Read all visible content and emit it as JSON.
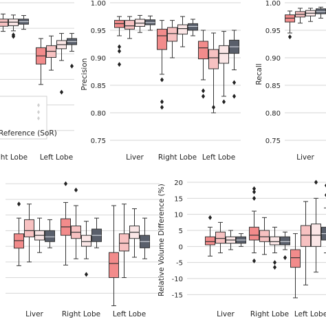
{
  "palette": {
    "series": [
      "#f28b8b",
      "#f7c1c1",
      "#fae6e6",
      "#595f6b"
    ],
    "grid": "#d6d6d6",
    "outlier": "#222222"
  },
  "legend": {
    "label": "Reference (SoR)"
  },
  "chart_data": [
    {
      "type": "box",
      "panel": "top-left (cropped)",
      "title": "",
      "ylabel": "",
      "categories": [
        "Right Lobe",
        "Left Lobe"
      ],
      "ylim": [
        0.72,
        1.0
      ],
      "yticks": [],
      "series": [
        {
          "values": [
            {
              "q1": 0.954,
              "med": 0.96,
              "q3": 0.967,
              "wlo": 0.94,
              "whi": 0.976,
              "out": [
                0.93
              ]
            },
            {
              "q1": 0.88,
              "med": 0.896,
              "q3": 0.912,
              "wlo": 0.84,
              "whi": 0.93,
              "out": []
            }
          ]
        },
        {
          "values": [
            {
              "q1": 0.954,
              "med": 0.962,
              "q3": 0.968,
              "wlo": 0.944,
              "whi": 0.978,
              "out": []
            },
            {
              "q1": 0.893,
              "med": 0.905,
              "q3": 0.916,
              "wlo": 0.868,
              "whi": 0.935,
              "out": []
            }
          ]
        },
        {
          "values": [
            {
              "q1": 0.955,
              "med": 0.962,
              "q3": 0.968,
              "wlo": 0.945,
              "whi": 0.976,
              "out": [
                0.937,
                0.934
              ]
            },
            {
              "q1": 0.91,
              "med": 0.918,
              "q3": 0.926,
              "wlo": 0.887,
              "whi": 0.94,
              "out": [
                0.825
              ]
            }
          ]
        },
        {
          "values": [
            {
              "q1": 0.958,
              "med": 0.963,
              "q3": 0.968,
              "wlo": 0.948,
              "whi": 0.975,
              "out": []
            },
            {
              "q1": 0.918,
              "med": 0.924,
              "q3": 0.93,
              "wlo": 0.905,
              "whi": 0.94,
              "out": [
                0.876
              ]
            }
          ]
        }
      ]
    },
    {
      "type": "box",
      "panel": "top-middle",
      "title": "",
      "ylabel": "Precision",
      "categories": [
        "Liver",
        "Right Lobe",
        "Left Lobe"
      ],
      "ylim": [
        0.74,
        1.0
      ],
      "yticks": [
        "0.75",
        "0.80",
        "0.85",
        "0.90",
        "0.95",
        "1.00"
      ],
      "series": [
        {
          "values": [
            {
              "q1": 0.955,
              "med": 0.962,
              "q3": 0.968,
              "wlo": 0.94,
              "whi": 0.975,
              "out": [
                0.92,
                0.912,
                0.888
              ]
            },
            {
              "q1": 0.915,
              "med": 0.94,
              "q3": 0.952,
              "wlo": 0.87,
              "whi": 0.968,
              "out": [
                0.86,
                0.82,
                0.81
              ]
            },
            {
              "q1": 0.898,
              "med": 0.918,
              "q3": 0.93,
              "wlo": 0.86,
              "whi": 0.95,
              "out": [
                0.84,
                0.83
              ]
            }
          ]
        },
        {
          "values": [
            {
              "q1": 0.952,
              "med": 0.958,
              "q3": 0.968,
              "wlo": 0.935,
              "whi": 0.975,
              "out": []
            },
            {
              "q1": 0.93,
              "med": 0.944,
              "q3": 0.955,
              "wlo": 0.9,
              "whi": 0.968,
              "out": []
            },
            {
              "q1": 0.88,
              "med": 0.9,
              "q3": 0.915,
              "wlo": 0.8,
              "whi": 0.945,
              "out": [
                0.81
              ]
            }
          ]
        },
        {
          "values": [
            {
              "q1": 0.957,
              "med": 0.963,
              "q3": 0.97,
              "wlo": 0.946,
              "whi": 0.977,
              "out": []
            },
            {
              "q1": 0.943,
              "med": 0.953,
              "q3": 0.96,
              "wlo": 0.92,
              "whi": 0.975,
              "out": []
            },
            {
              "q1": 0.89,
              "med": 0.908,
              "q3": 0.922,
              "wlo": 0.83,
              "whi": 0.948,
              "out": [
                0.82
              ]
            }
          ]
        },
        {
          "values": [
            {
              "q1": 0.96,
              "med": 0.964,
              "q3": 0.969,
              "wlo": 0.95,
              "whi": 0.976,
              "out": []
            },
            {
              "q1": 0.95,
              "med": 0.957,
              "q3": 0.962,
              "wlo": 0.94,
              "whi": 0.97,
              "out": []
            },
            {
              "q1": 0.908,
              "med": 0.92,
              "q3": 0.932,
              "wlo": 0.878,
              "whi": 0.95,
              "out": [
                0.855,
                0.83
              ]
            }
          ]
        }
      ]
    },
    {
      "type": "box",
      "panel": "top-right (cropped)",
      "title": "",
      "ylabel": "Recall",
      "categories": [
        "Liver"
      ],
      "ylim": [
        0.74,
        1.0
      ],
      "yticks": [
        "0.75",
        "0.80",
        "0.85",
        "0.90",
        "0.95",
        "1.00"
      ],
      "series": [
        {
          "values": [
            {
              "q1": 0.965,
              "med": 0.972,
              "q3": 0.978,
              "wlo": 0.945,
              "whi": 0.985,
              "out": [
                0.938
              ]
            }
          ]
        },
        {
          "values": [
            {
              "q1": 0.974,
              "med": 0.979,
              "q3": 0.984,
              "wlo": 0.963,
              "whi": 0.99,
              "out": []
            }
          ]
        },
        {
          "values": [
            {
              "q1": 0.976,
              "med": 0.981,
              "q3": 0.986,
              "wlo": 0.966,
              "whi": 0.99,
              "out": []
            }
          ]
        },
        {
          "values": [
            {
              "q1": 0.98,
              "med": 0.984,
              "q3": 0.989,
              "wlo": 0.972,
              "whi": 0.992,
              "out": []
            }
          ]
        }
      ]
    },
    {
      "type": "box",
      "panel": "bottom-left (cropped)",
      "title": "",
      "ylabel": "",
      "categories": [
        "Liver",
        "Right Lobe",
        "Left Lobe"
      ],
      "ylim": [
        -18,
        22
      ],
      "yticks": [],
      "series": [
        {
          "values": [
            {
              "q1": -0.6,
              "med": 1.8,
              "q3": 4.0,
              "wlo": -6.2,
              "whi": 9.0,
              "out": [
                13.5
              ]
            },
            {
              "q1": 3.5,
              "med": 6.2,
              "q3": 8.8,
              "wlo": -6.0,
              "whi": 14.0,
              "out": [
                20.0
              ]
            },
            {
              "q1": -10.0,
              "med": -5.5,
              "q3": -2.0,
              "wlo": -19.0,
              "whi": 13.0,
              "out": []
            }
          ]
        },
        {
          "values": [
            {
              "q1": 3.0,
              "med": 5.0,
              "q3": 8.5,
              "wlo": -5.0,
              "whi": 13.5,
              "out": []
            },
            {
              "q1": 2.5,
              "med": 4.5,
              "q3": 6.5,
              "wlo": -4.0,
              "whi": 13.0,
              "out": [
                18.0
              ]
            },
            {
              "q1": -1.5,
              "med": 1.0,
              "q3": 4.0,
              "wlo": -10.0,
              "whi": 13.5,
              "out": []
            }
          ]
        },
        {
          "values": [
            {
              "q1": 2.0,
              "med": 3.5,
              "q3": 5.0,
              "wlo": -2.0,
              "whi": 9.0,
              "out": []
            },
            {
              "q1": 0.0,
              "med": 1.5,
              "q3": 3.5,
              "wlo": -4.0,
              "whi": 8.0,
              "out": [
                -9.0
              ]
            },
            {
              "q1": 2.5,
              "med": 4.5,
              "q3": 6.5,
              "wlo": -3.5,
              "whi": 12.0,
              "out": []
            }
          ]
        },
        {
          "values": [
            {
              "q1": 1.5,
              "med": 3.0,
              "q3": 5.0,
              "wlo": -0.5,
              "whi": 8.5,
              "out": []
            },
            {
              "q1": 1.5,
              "med": 3.5,
              "q3": 5.5,
              "wlo": -0.5,
              "whi": 9.0,
              "out": []
            },
            {
              "q1": -0.5,
              "med": 1.5,
              "q3": 3.5,
              "wlo": -4.0,
              "whi": 9.0,
              "out": []
            }
          ]
        }
      ]
    },
    {
      "type": "box",
      "panel": "bottom-right",
      "title": "",
      "ylabel": "Relative Volume Difference (%)",
      "categories": [
        "Liver",
        "Right Lobe",
        "Left Lobe"
      ],
      "ylim": [
        -17.5,
        21.5
      ],
      "yticks": [
        "-15",
        "-10",
        "-5",
        "0",
        "5",
        "10",
        "15",
        "20"
      ],
      "series": [
        {
          "values": [
            {
              "q1": 0.5,
              "med": 1.5,
              "q3": 3.0,
              "wlo": -3.0,
              "whi": 6.0,
              "out": [
                9.0
              ]
            },
            {
              "q1": 2.0,
              "med": 3.5,
              "q3": 6.0,
              "wlo": -2.0,
              "whi": 11.0,
              "out": [
                18.0,
                17.0,
                15.0,
                -4.5
              ]
            },
            {
              "q1": -6.5,
              "med": -3.5,
              "q3": -1.0,
              "wlo": -16.0,
              "whi": 4.0,
              "out": []
            }
          ]
        },
        {
          "values": [
            {
              "q1": 1.0,
              "med": 2.5,
              "q3": 4.5,
              "wlo": -2.0,
              "whi": 7.5,
              "out": []
            },
            {
              "q1": 1.5,
              "med": 3.0,
              "q3": 5.0,
              "wlo": -2.5,
              "whi": 9.0,
              "out": []
            },
            {
              "q1": 0.0,
              "med": 3.5,
              "q3": 6.5,
              "wlo": -12.0,
              "whi": 14.0,
              "out": []
            }
          ]
        },
        {
          "values": [
            {
              "q1": 1.0,
              "med": 2.0,
              "q3": 3.0,
              "wlo": -1.0,
              "whi": 5.0,
              "out": []
            },
            {
              "q1": 0.5,
              "med": 1.5,
              "q3": 3.0,
              "wlo": -2.0,
              "whi": 6.0,
              "out": [
                -5.0,
                -6.5
              ]
            },
            {
              "q1": 0.0,
              "med": 3.5,
              "q3": 7.0,
              "wlo": -8.0,
              "whi": 15.0,
              "out": [
                20.0
              ]
            }
          ]
        },
        {
          "values": [
            {
              "q1": 1.0,
              "med": 2.0,
              "q3": 3.0,
              "wlo": 0.0,
              "whi": 4.0,
              "out": []
            },
            {
              "q1": 0.5,
              "med": 1.5,
              "q3": 3.0,
              "wlo": -1.0,
              "whi": 4.5,
              "out": [
                -3.5
              ]
            },
            {
              "q1": 2.0,
              "med": 4.0,
              "q3": 6.0,
              "wlo": -2.0,
              "whi": 12.0,
              "out": [
                16.0,
                19.0
              ]
            }
          ]
        }
      ]
    }
  ]
}
